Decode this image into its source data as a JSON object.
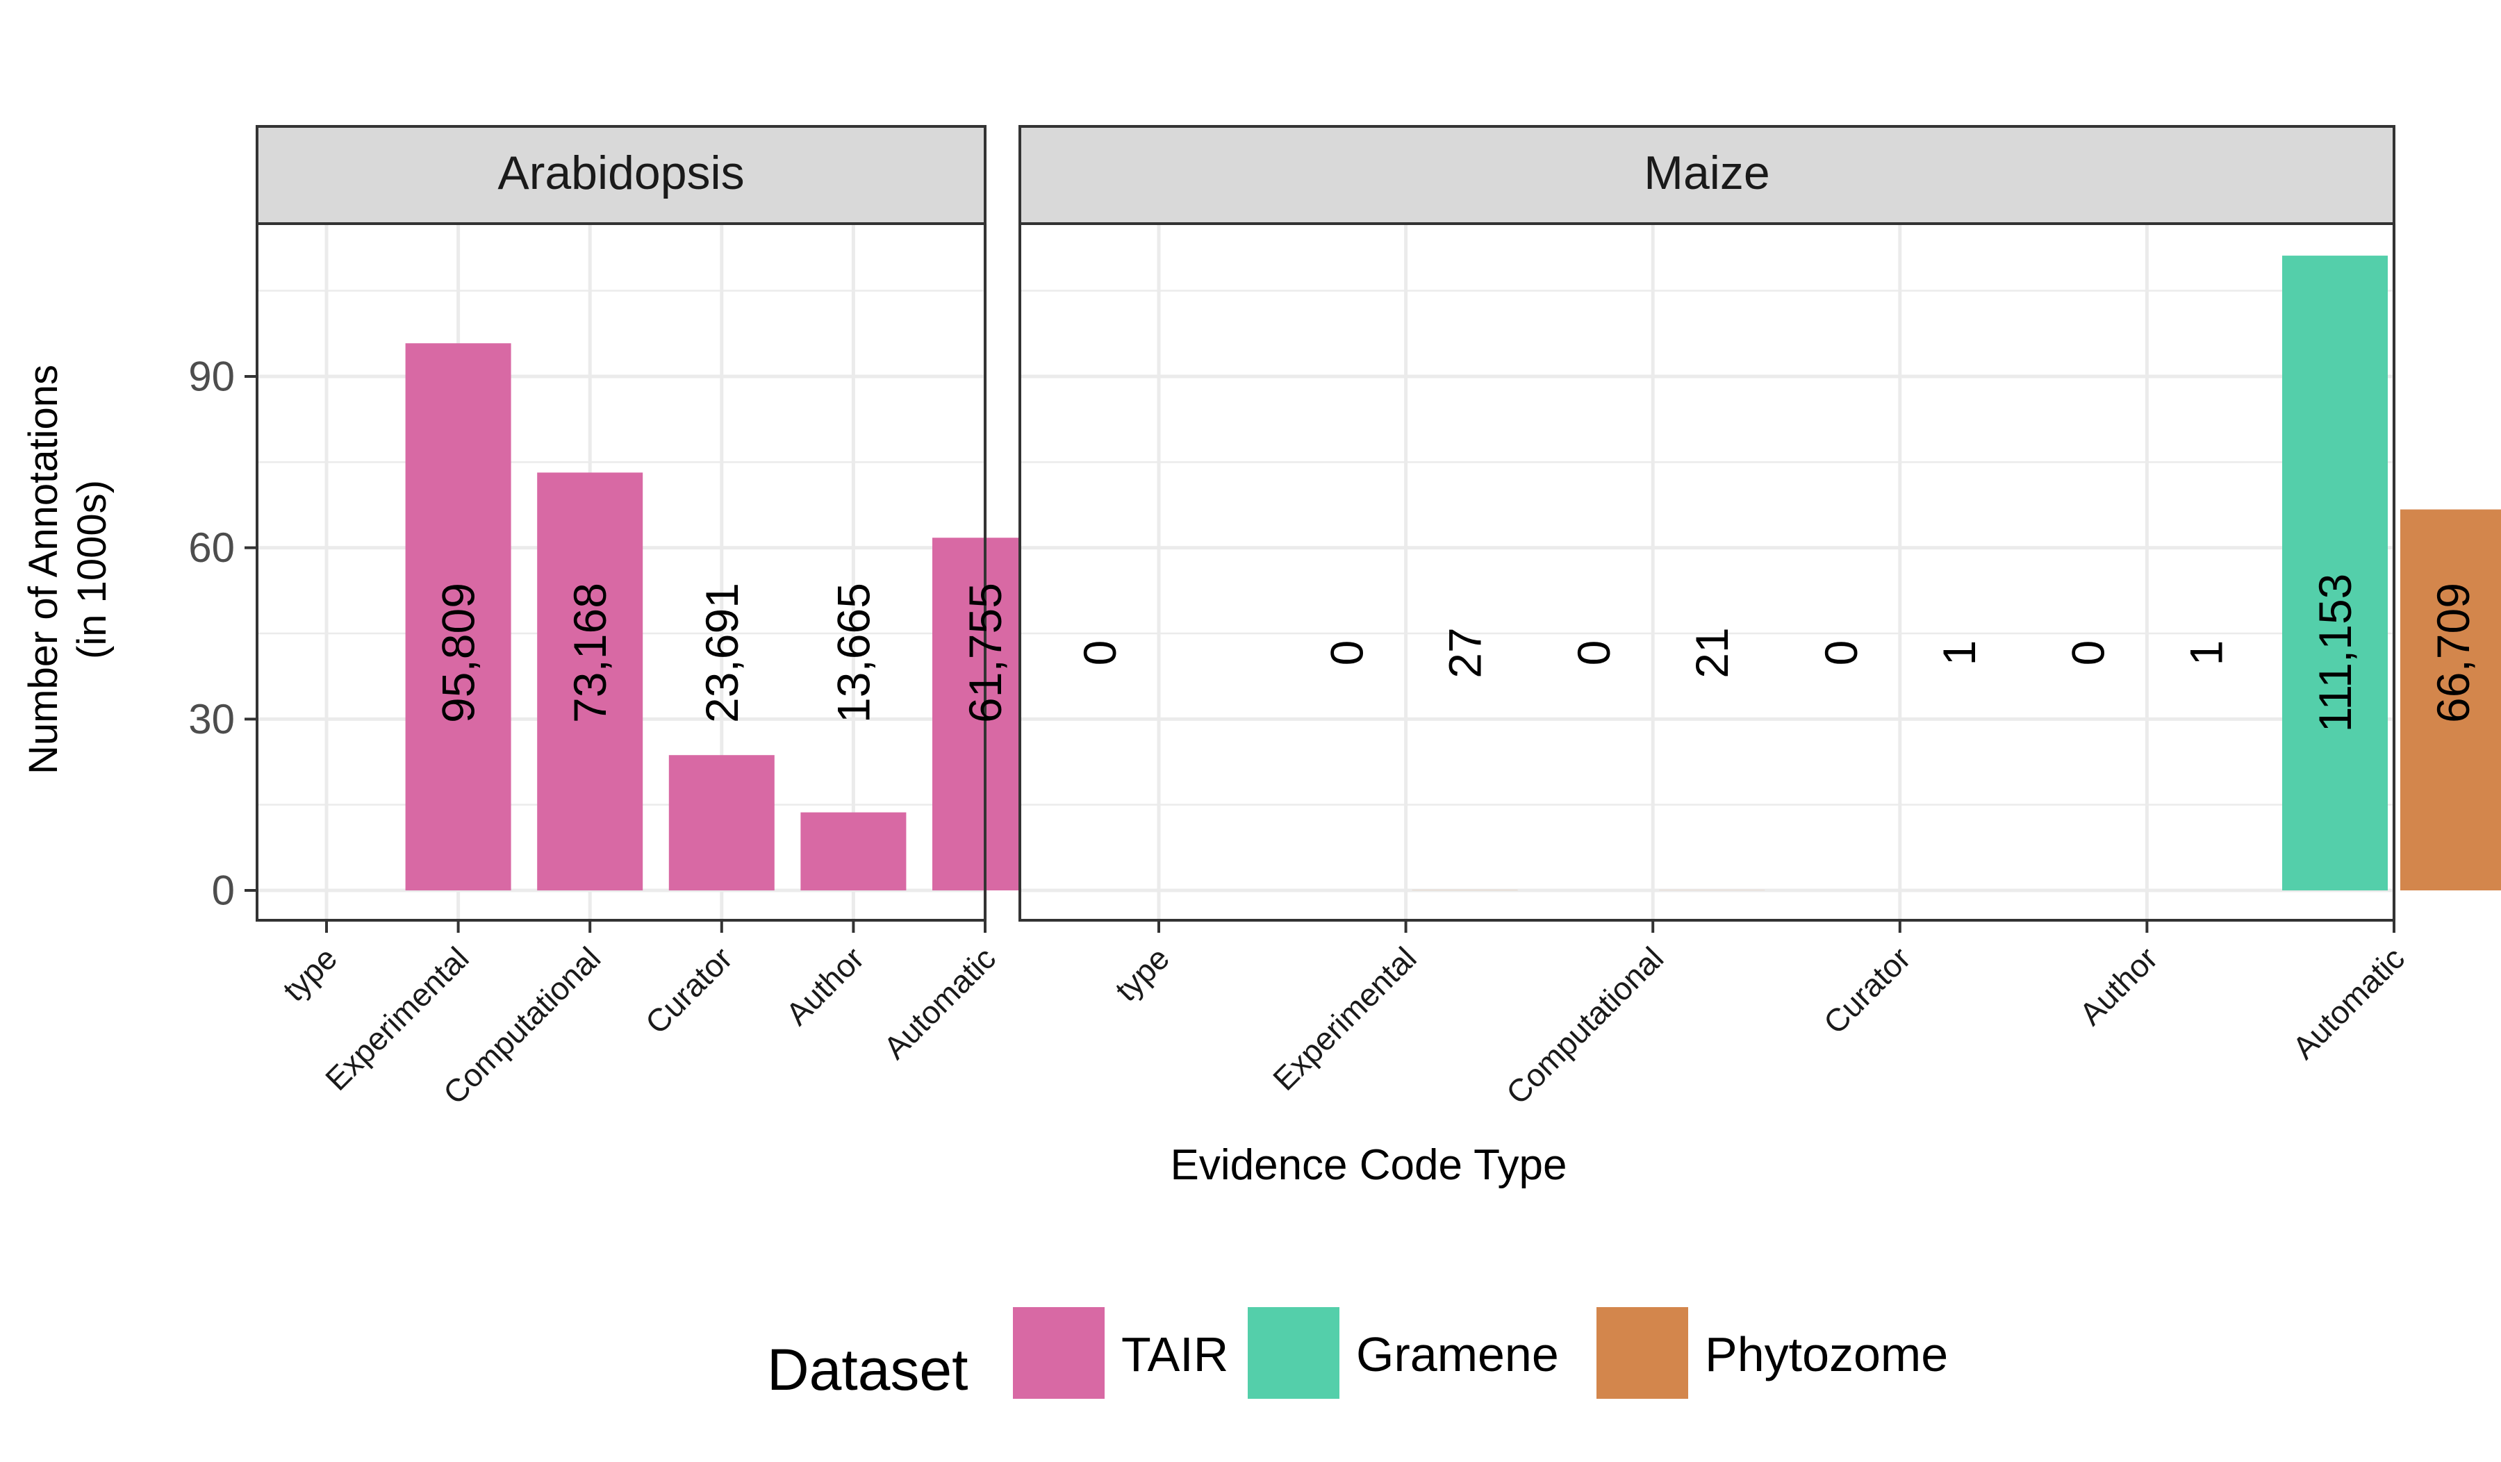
{
  "chart_data": {
    "type": "bar",
    "facets": [
      {
        "title": "Arabidopsis",
        "categories": [
          "type",
          "Experimental",
          "Computational",
          "Curator",
          "Author",
          "Automatic"
        ],
        "series": [
          {
            "name": "TAIR",
            "values": [
              {
                "category": "Experimental",
                "value": 95809,
                "label": "95,809"
              },
              {
                "category": "Computational",
                "value": 73168,
                "label": "73,168"
              },
              {
                "category": "Curator",
                "value": 23691,
                "label": "23,691"
              },
              {
                "category": "Author",
                "value": 13665,
                "label": "13,665"
              },
              {
                "category": "Automatic",
                "value": 61755,
                "label": "61,755"
              }
            ]
          }
        ]
      },
      {
        "title": "Maize",
        "categories": [
          "type",
          "Experimental",
          "Computational",
          "Curator",
          "Author",
          "Automatic"
        ],
        "series": [
          {
            "name": "Gramene",
            "values": [
              {
                "category": "type",
                "value": 0,
                "label": "0"
              },
              {
                "category": "Experimental",
                "value": 0,
                "label": "0"
              },
              {
                "category": "Computational",
                "value": 0,
                "label": "0"
              },
              {
                "category": "Curator",
                "value": 0,
                "label": "0"
              },
              {
                "category": "Author",
                "value": 0,
                "label": "0"
              },
              {
                "category": "Automatic",
                "value": 111153,
                "label": "111,153"
              }
            ]
          },
          {
            "name": "Phytozome",
            "values": [
              {
                "category": "Experimental",
                "value": 27,
                "label": "27"
              },
              {
                "category": "Computational",
                "value": 21,
                "label": "21"
              },
              {
                "category": "Curator",
                "value": 1,
                "label": "1"
              },
              {
                "category": "Author",
                "value": 1,
                "label": "1"
              },
              {
                "category": "Automatic",
                "value": 66709,
                "label": "66,709"
              }
            ]
          }
        ]
      }
    ],
    "title": "",
    "xlabel": "Evidence Code Type",
    "ylabel": [
      "Number of Annotations",
      "(in 1000s)"
    ],
    "ylim": [
      0,
      120
    ],
    "yticks": [
      0,
      30,
      60,
      90
    ],
    "y_scale_note": "values shown in 1000s on axis",
    "grid": true,
    "legend": {
      "title": "Dataset",
      "position": "bottom",
      "entries": [
        {
          "name": "TAIR",
          "color": "#D869A4"
        },
        {
          "name": "Gramene",
          "color": "#54CFAA"
        },
        {
          "name": "Phytozome",
          "color": "#D3864C"
        }
      ]
    }
  }
}
